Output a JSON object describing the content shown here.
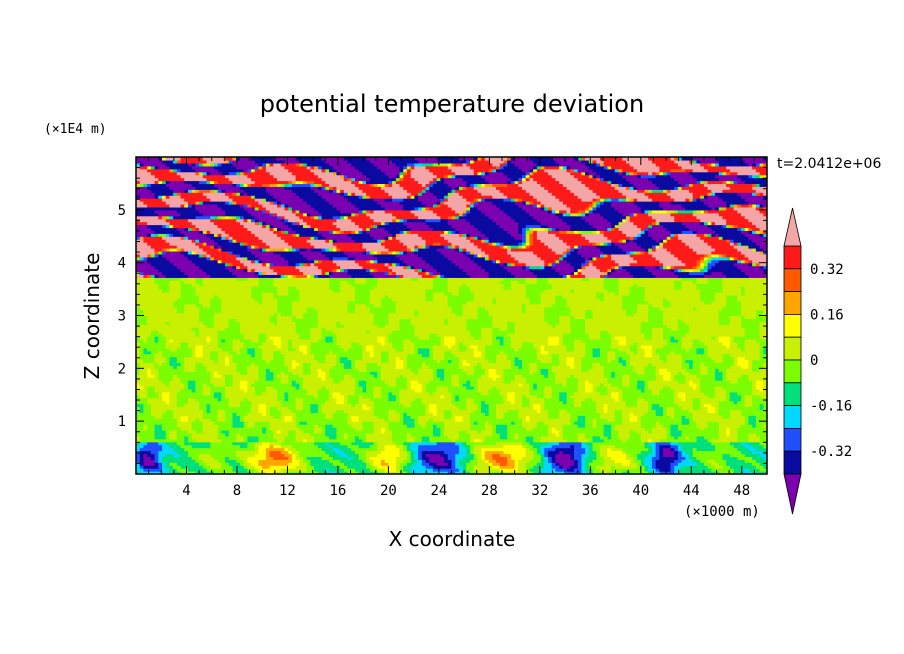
{
  "chart_data": {
    "type": "heatmap",
    "title": "potential temperature deviation",
    "xlabel": "X coordinate",
    "ylabel": "Z coordinate",
    "x_scale_label": "(×1000 m)",
    "z_scale_label": "(×1E4 m)",
    "time_label": "t=2.0412e+06",
    "xlim": [
      0,
      50
    ],
    "zlim": [
      0,
      6
    ],
    "x_ticks": [
      "4",
      "8",
      "12",
      "16",
      "20",
      "24",
      "28",
      "32",
      "36",
      "40",
      "44",
      "48"
    ],
    "z_ticks": [
      "1",
      "2",
      "3",
      "4",
      "5"
    ],
    "colorbar": {
      "labels": [
        "0.32",
        "0.16",
        "0",
        "-0.16",
        "-0.32"
      ],
      "levels": [
        -0.4,
        -0.32,
        -0.24,
        -0.16,
        -0.08,
        0,
        0.08,
        0.16,
        0.24,
        0.32,
        0.4
      ],
      "colors": [
        "#7a00b0",
        "#0a0aa0",
        "#1e50ff",
        "#00d8ff",
        "#00e07a",
        "#7cfc00",
        "#c8f000",
        "#ffff00",
        "#ffa500",
        "#ff5a00",
        "#ff1a1a",
        "#f4a6a6"
      ]
    },
    "regions": [
      {
        "name": "upper layer",
        "z_range": [
          3.7,
          6.0
        ],
        "pattern": "alternating bands",
        "value_range": [
          -0.4,
          0.4
        ]
      },
      {
        "name": "middle layer",
        "z_range": [
          0.6,
          3.7
        ],
        "pattern": "near zero",
        "value_range": [
          -0.08,
          0.08
        ]
      },
      {
        "name": "lower layer",
        "z_range": [
          0.0,
          0.6
        ],
        "pattern": "cells",
        "value_range": [
          -0.4,
          0.4
        ]
      }
    ]
  }
}
